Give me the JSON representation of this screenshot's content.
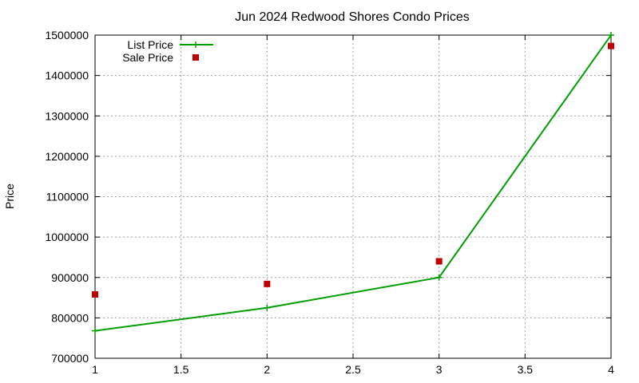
{
  "chart_data": {
    "type": "line",
    "title": "Jun 2024 Redwood Shores Condo Prices",
    "xlabel": "",
    "ylabel": "Price",
    "xlim": [
      1,
      4
    ],
    "ylim": [
      700000,
      1500000
    ],
    "xticks": [
      "1",
      "1.5",
      "2",
      "2.5",
      "3",
      "3.5",
      "4"
    ],
    "yticks": [
      "700000",
      "800000",
      "900000",
      "1000000",
      "1100000",
      "1200000",
      "1300000",
      "1400000",
      "1500000"
    ],
    "grid": true,
    "legend_position": "top-left",
    "series": [
      {
        "name": "List Price",
        "style": "line-with-plus-markers",
        "color": "#009e00",
        "x": [
          1,
          2,
          3,
          4
        ],
        "y": [
          768000,
          825000,
          900000,
          1500000
        ]
      },
      {
        "name": "Sale Price",
        "style": "square-points",
        "color": "#c00000",
        "x": [
          1,
          2,
          3,
          4
        ],
        "y": [
          858000,
          884000,
          940000,
          1473000
        ]
      }
    ]
  }
}
